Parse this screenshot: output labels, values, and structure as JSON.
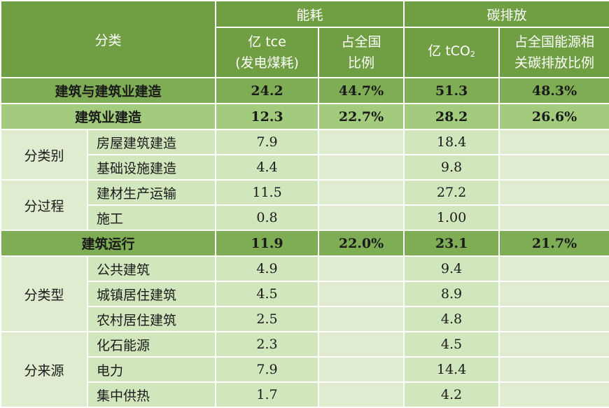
{
  "header": {
    "category": "分类",
    "energy_group": "能耗",
    "carbon_group": "碳排放",
    "energy_unit_line1": "亿 tce",
    "energy_unit_line2": "(发电煤耗)",
    "energy_share_line1": "占全国",
    "energy_share_line2": "比例",
    "carbon_unit_prefix": "亿 tCO",
    "carbon_unit_sub": "2",
    "carbon_share_line1": "占全国能源相",
    "carbon_share_line2": "关碳排放比例"
  },
  "rows": {
    "total": {
      "label": "建筑与建筑业建造",
      "energy": "24.2",
      "energy_share": "44.7%",
      "carbon": "51.3",
      "carbon_share": "48.3%"
    },
    "construction": {
      "label": "建筑业建造",
      "energy": "12.3",
      "energy_share": "22.7%",
      "carbon": "28.2",
      "carbon_share": "26.6%"
    },
    "by_category": {
      "label": "分类别",
      "items": [
        {
          "name": "房屋建筑建造",
          "energy": "7.9",
          "carbon": "18.4"
        },
        {
          "name": "基础设施建造",
          "energy": "4.4",
          "carbon": "9.8"
        }
      ]
    },
    "by_process": {
      "label": "分过程",
      "items": [
        {
          "name": "建材生产运输",
          "energy": "11.5",
          "carbon": "27.2"
        },
        {
          "name": "施工",
          "energy": "0.8",
          "carbon": "1.00"
        }
      ]
    },
    "operation": {
      "label": "建筑运行",
      "energy": "11.9",
      "energy_share": "22.0%",
      "carbon": "23.1",
      "carbon_share": "21.7%"
    },
    "by_type": {
      "label": "分类型",
      "items": [
        {
          "name": "公共建筑",
          "energy": "4.9",
          "carbon": "9.4"
        },
        {
          "name": "城镇居住建筑",
          "energy": "4.5",
          "carbon": "8.9"
        },
        {
          "name": "农村居住建筑",
          "energy": "2.5",
          "carbon": "4.8"
        }
      ]
    },
    "by_source": {
      "label": "分来源",
      "items": [
        {
          "name": "化石能源",
          "energy": "2.3",
          "carbon": "4.5"
        },
        {
          "name": "电力",
          "energy": "7.9",
          "carbon": "14.4"
        },
        {
          "name": "集中供热",
          "energy": "1.7",
          "carbon": "4.2"
        }
      ]
    }
  },
  "colors": {
    "header_bg": "#6f9f42",
    "main_row_bg": "#7fad55",
    "sub_row_bg": "#a3cb7d",
    "detail_bg": "#d2e6bd",
    "category_bg": "#dfeccf"
  }
}
